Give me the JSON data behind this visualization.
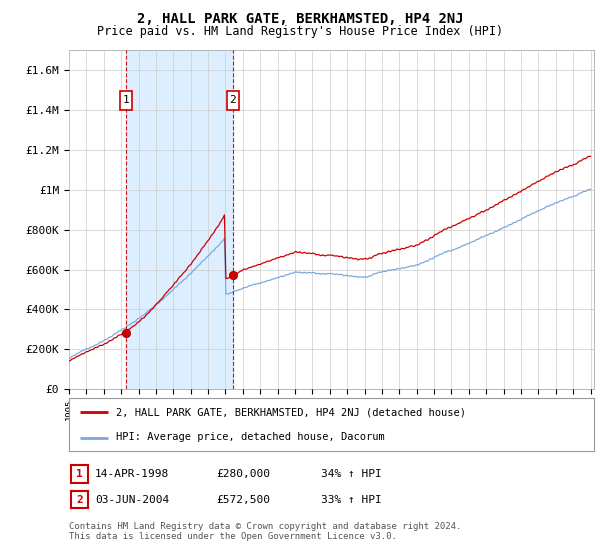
{
  "title": "2, HALL PARK GATE, BERKHAMSTED, HP4 2NJ",
  "subtitle": "Price paid vs. HM Land Registry's House Price Index (HPI)",
  "ylim": [
    0,
    1700000
  ],
  "yticks": [
    0,
    200000,
    400000,
    600000,
    800000,
    1000000,
    1200000,
    1400000,
    1600000
  ],
  "ytick_labels": [
    "£0",
    "£200K",
    "£400K",
    "£600K",
    "£800K",
    "£1M",
    "£1.2M",
    "£1.4M",
    "£1.6M"
  ],
  "xlim_start": 1995.3,
  "xlim_end": 2025.2,
  "sale1_x": 1998.29,
  "sale1_y": 280000,
  "sale2_x": 2004.42,
  "sale2_y": 572500,
  "line_color_red": "#cc0000",
  "line_color_blue": "#7aaadd",
  "shade_color": "#ddeeff",
  "vline_color": "#cc0000",
  "marker_box_color": "#cc0000",
  "legend_label_red": "2, HALL PARK GATE, BERKHAMSTED, HP4 2NJ (detached house)",
  "legend_label_blue": "HPI: Average price, detached house, Dacorum",
  "footer": "Contains HM Land Registry data © Crown copyright and database right 2024.\nThis data is licensed under the Open Government Licence v3.0.",
  "background_color": "#ffffff",
  "grid_color": "#cccccc"
}
